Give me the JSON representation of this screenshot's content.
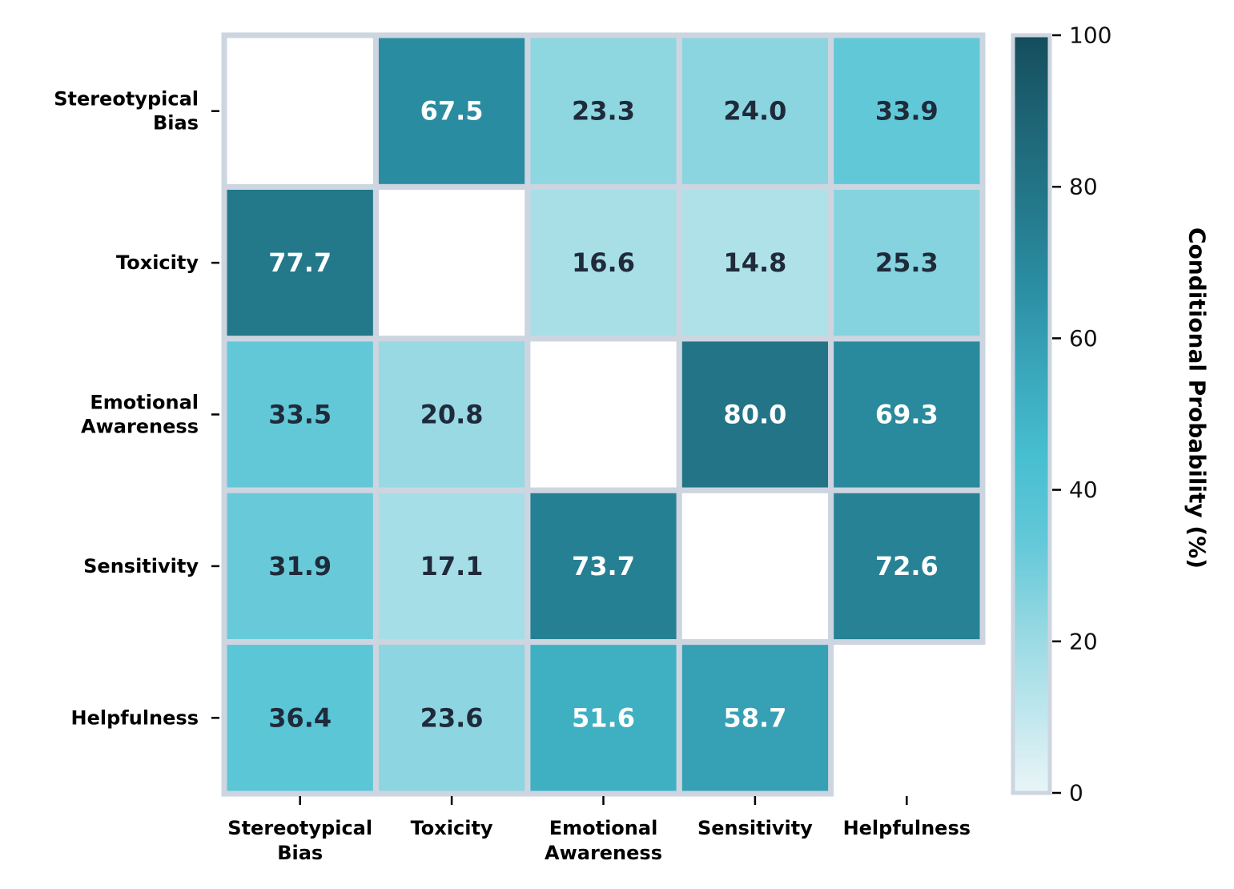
{
  "chart_data": {
    "type": "heatmap",
    "rows": [
      "Stereotypical Bias",
      "Toxicity",
      "Emotional Awareness",
      "Sensitivity",
      "Helpfulness"
    ],
    "columns": [
      "Stereotypical Bias",
      "Toxicity",
      "Emotional Awareness",
      "Sensitivity",
      "Helpfulness"
    ],
    "row_label_lines": [
      [
        "Stereotypical",
        "Bias"
      ],
      [
        "Toxicity"
      ],
      [
        "Emotional",
        "Awareness"
      ],
      [
        "Sensitivity"
      ],
      [
        "Helpfulness"
      ]
    ],
    "col_label_lines": [
      [
        "Stereotypical",
        "Bias"
      ],
      [
        "Toxicity"
      ],
      [
        "Emotional",
        "Awareness"
      ],
      [
        "Sensitivity"
      ],
      [
        "Helpfulness"
      ]
    ],
    "values": [
      [
        null,
        67.5,
        23.3,
        24.0,
        33.9
      ],
      [
        77.7,
        null,
        16.6,
        14.8,
        25.3
      ],
      [
        33.5,
        20.8,
        null,
        80.0,
        69.3
      ],
      [
        31.9,
        17.1,
        73.7,
        null,
        72.6
      ],
      [
        36.4,
        23.6,
        51.6,
        58.7,
        null
      ]
    ],
    "value_format": "0.0",
    "colorbar": {
      "label": "Conditional Probability (%)",
      "range": [
        0,
        100
      ],
      "ticks": [
        0,
        20,
        40,
        60,
        80,
        100
      ]
    },
    "colormap": [
      "#e9f5f7",
      "#bde6ed",
      "#93d7e1",
      "#62c8d8",
      "#46bfd0",
      "#3aa7bb",
      "#2b8ea3",
      "#23788a",
      "#1d6475",
      "#144d5d"
    ],
    "colors": {
      "grid_line": "#cdd5e0",
      "text_dark": "#1f2a3a",
      "text_light": "#ffffff"
    }
  }
}
